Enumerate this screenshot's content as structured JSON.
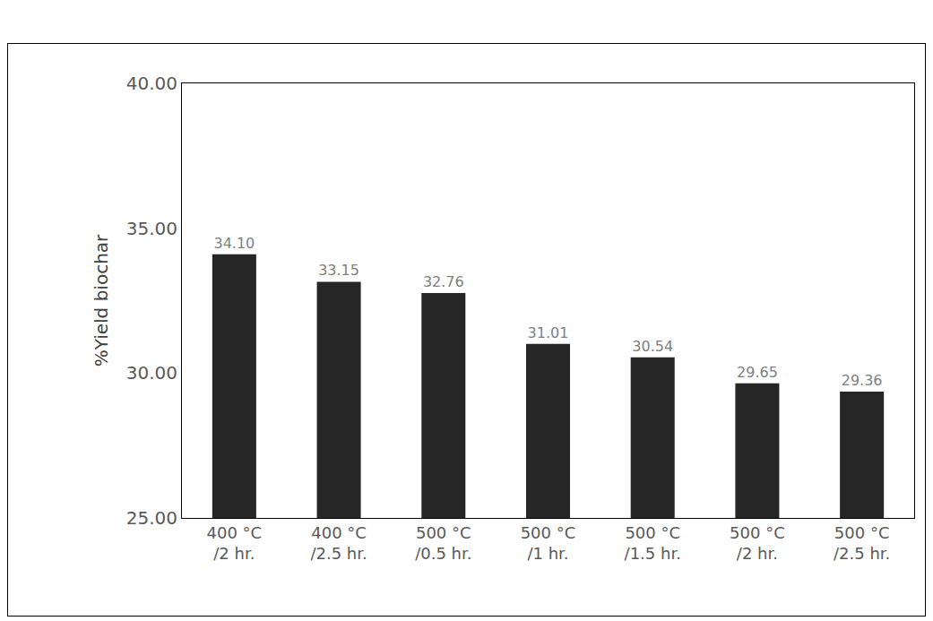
{
  "chart_data": {
    "type": "bar",
    "y_label": "%Yield biochar",
    "categories": [
      "400 °C /2 hr.",
      "400 °C /2.5 hr.",
      "500 °C /0.5 hr.",
      "500 °C /1 hr.",
      "500 °C /1.5 hr.",
      "500 °C /2 hr.",
      "500 °C /2.5 hr."
    ],
    "values": [
      34.1,
      33.15,
      32.76,
      31.01,
      30.54,
      29.65,
      29.36
    ],
    "value_labels": [
      "34.10",
      "33.15",
      "32.76",
      "31.01",
      "30.54",
      "29.65",
      "29.36"
    ],
    "color": "#262626",
    "ylim": [
      25,
      40
    ],
    "yticks": [
      {
        "value": 25,
        "label": "25.00"
      },
      {
        "value": 30,
        "label": "30.00"
      },
      {
        "value": 35,
        "label": "35.00"
      },
      {
        "value": 40,
        "label": "40.00"
      }
    ],
    "grid": false,
    "data_labels": true
  }
}
